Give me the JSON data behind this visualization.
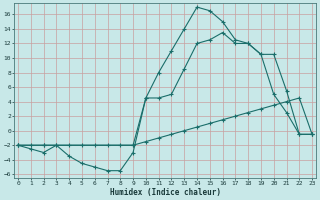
{
  "xlabel": "Humidex (Indice chaleur)",
  "background_color": "#c8e8e8",
  "grid_color": "#c8a0a0",
  "line_color": "#1a6e6a",
  "xlim": [
    -0.3,
    23.3
  ],
  "ylim": [
    -6.5,
    17.5
  ],
  "xticks": [
    0,
    1,
    2,
    3,
    4,
    5,
    6,
    7,
    8,
    9,
    10,
    11,
    12,
    13,
    14,
    15,
    16,
    17,
    18,
    19,
    20,
    21,
    22,
    23
  ],
  "yticks": [
    -6,
    -4,
    -2,
    0,
    2,
    4,
    6,
    8,
    10,
    12,
    14,
    16
  ],
  "line1_x": [
    0,
    1,
    2,
    3,
    4,
    5,
    6,
    7,
    8,
    9,
    10,
    11,
    12,
    13,
    14,
    15,
    16,
    17,
    18,
    19,
    20,
    21,
    22,
    23
  ],
  "line1_y": [
    -2.0,
    -2.5,
    -3.0,
    -2.0,
    -3.5,
    -4.5,
    -5.0,
    -5.5,
    -5.5,
    -3.0,
    4.5,
    8.0,
    11.0,
    14.0,
    17.0,
    16.5,
    15.0,
    12.5,
    12.0,
    10.5,
    5.0,
    2.5,
    -0.5,
    -0.5
  ],
  "line2_x": [
    0,
    2,
    9,
    10,
    11,
    12,
    13,
    14,
    15,
    16,
    17,
    18,
    19,
    20,
    21,
    22,
    23
  ],
  "line2_y": [
    -2.0,
    -2.0,
    -2.0,
    4.5,
    4.5,
    5.0,
    8.5,
    12.0,
    12.5,
    13.5,
    12.0,
    12.0,
    10.5,
    10.5,
    5.5,
    -0.5,
    -0.5
  ],
  "line3_x": [
    0,
    1,
    2,
    3,
    4,
    5,
    6,
    7,
    8,
    9,
    10,
    11,
    12,
    13,
    14,
    15,
    16,
    17,
    18,
    19,
    20,
    21,
    22,
    23
  ],
  "line3_y": [
    -2.0,
    -2.0,
    -2.0,
    -2.0,
    -2.0,
    -2.0,
    -2.0,
    -2.0,
    -2.0,
    -2.0,
    -1.5,
    -1.0,
    -0.5,
    0.0,
    0.5,
    1.0,
    1.5,
    2.0,
    2.5,
    3.0,
    3.5,
    4.0,
    4.5,
    -0.5
  ]
}
